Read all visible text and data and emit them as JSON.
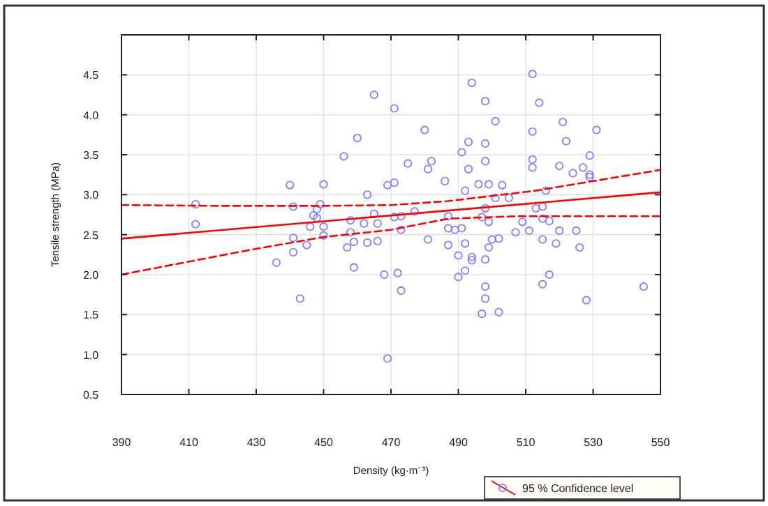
{
  "chart_data": {
    "type": "scatter",
    "xlabel": "Density  (kg·m⁻³)",
    "ylabel": "Tensile strength (MPa)",
    "xlim": [
      390,
      550
    ],
    "xticks": [
      390,
      410,
      430,
      450,
      470,
      490,
      510,
      530,
      550
    ],
    "ylim": [
      0.5,
      5.0
    ],
    "yticks": [
      0.5,
      {
        "value": 1,
        "label": "1.0"
      },
      1.5,
      {
        "value": 2,
        "label": "2.0"
      },
      2.5,
      {
        "value": 3,
        "label": "3.0"
      },
      3.5,
      {
        "value": 4,
        "label": "4.0"
      },
      4.5
    ],
    "grid": true,
    "legend": "bottom right",
    "series": [
      {
        "name": "95 %  Confidence level",
        "color": "#7f7fff",
        "marker": "circle",
        "x": [
          412,
          412,
          440,
          441,
          441,
          450,
          449,
          448,
          447,
          448,
          446,
          450,
          450,
          445,
          456,
          460,
          465,
          463,
          458,
          462,
          465,
          466,
          458,
          466,
          463,
          459,
          457,
          469,
          471,
          436,
          441,
          443,
          459,
          468,
          469,
          472,
          473,
          481,
          487,
          492,
          490,
          494,
          494,
          498,
          499,
          500,
          502,
          492,
          490,
          498,
          498,
          497,
          502,
          515,
          519,
          526,
          517,
          515,
          528,
          545,
          494,
          512,
          498,
          514,
          501,
          521,
          480,
          512,
          531,
          493,
          498,
          522,
          491,
          529,
          475,
          482,
          481,
          493,
          498,
          512,
          512,
          520,
          527,
          524,
          529,
          529,
          471,
          486,
          496,
          499,
          503,
          492,
          516,
          501,
          505,
          498,
          513,
          515,
          477,
          471,
          473,
          487,
          497,
          499,
          509,
          515,
          517,
          473,
          487,
          489,
          491,
          507,
          511,
          520,
          525
        ],
        "values": [
          2.88,
          2.63,
          3.12,
          2.85,
          2.46,
          3.13,
          2.88,
          2.82,
          2.74,
          2.71,
          2.6,
          2.6,
          2.49,
          2.37,
          3.48,
          3.71,
          4.25,
          3.0,
          2.68,
          2.64,
          2.76,
          2.64,
          2.53,
          2.42,
          2.4,
          2.41,
          2.34,
          3.12,
          4.08,
          2.15,
          2.28,
          1.7,
          2.09,
          2.0,
          0.95,
          2.02,
          1.8,
          2.44,
          2.37,
          2.39,
          2.24,
          2.22,
          2.18,
          2.19,
          2.34,
          2.44,
          2.45,
          2.05,
          1.97,
          1.85,
          1.7,
          1.51,
          1.53,
          2.44,
          2.39,
          2.34,
          2.0,
          1.88,
          1.68,
          1.85,
          4.4,
          4.51,
          4.17,
          4.15,
          3.92,
          3.91,
          3.81,
          3.79,
          3.81,
          3.66,
          3.64,
          3.67,
          3.53,
          3.49,
          3.39,
          3.42,
          3.32,
          3.32,
          3.42,
          3.44,
          3.34,
          3.36,
          3.34,
          3.27,
          3.25,
          3.22,
          3.15,
          3.17,
          3.13,
          3.13,
          3.12,
          3.05,
          3.05,
          2.96,
          2.96,
          2.83,
          2.83,
          2.85,
          2.79,
          2.72,
          2.73,
          2.73,
          2.72,
          2.66,
          2.66,
          2.7,
          2.67,
          2.56,
          2.58,
          2.56,
          2.58,
          2.53,
          2.55,
          2.55,
          2.55
        ]
      },
      {
        "type": "line",
        "color": "#ff0000",
        "line_style": "solid",
        "x": [
          390,
          550
        ],
        "values": [
          2.45,
          3.03
        ]
      },
      {
        "type": "line",
        "color": "#ff0000",
        "line_style": "dashed",
        "x": [
          390,
          420,
          450,
          470,
          487,
          513,
          530,
          550
        ],
        "values": [
          2.87,
          2.86,
          2.86,
          2.87,
          2.92,
          3.05,
          3.17,
          3.31
        ]
      },
      {
        "type": "line",
        "color": "#ff0000",
        "line_style": "dashed",
        "x": [
          390,
          427,
          450,
          470,
          487,
          507,
          530,
          550
        ],
        "values": [
          2.0,
          2.3,
          2.47,
          2.56,
          2.7,
          2.73,
          2.73,
          2.73
        ]
      }
    ]
  }
}
